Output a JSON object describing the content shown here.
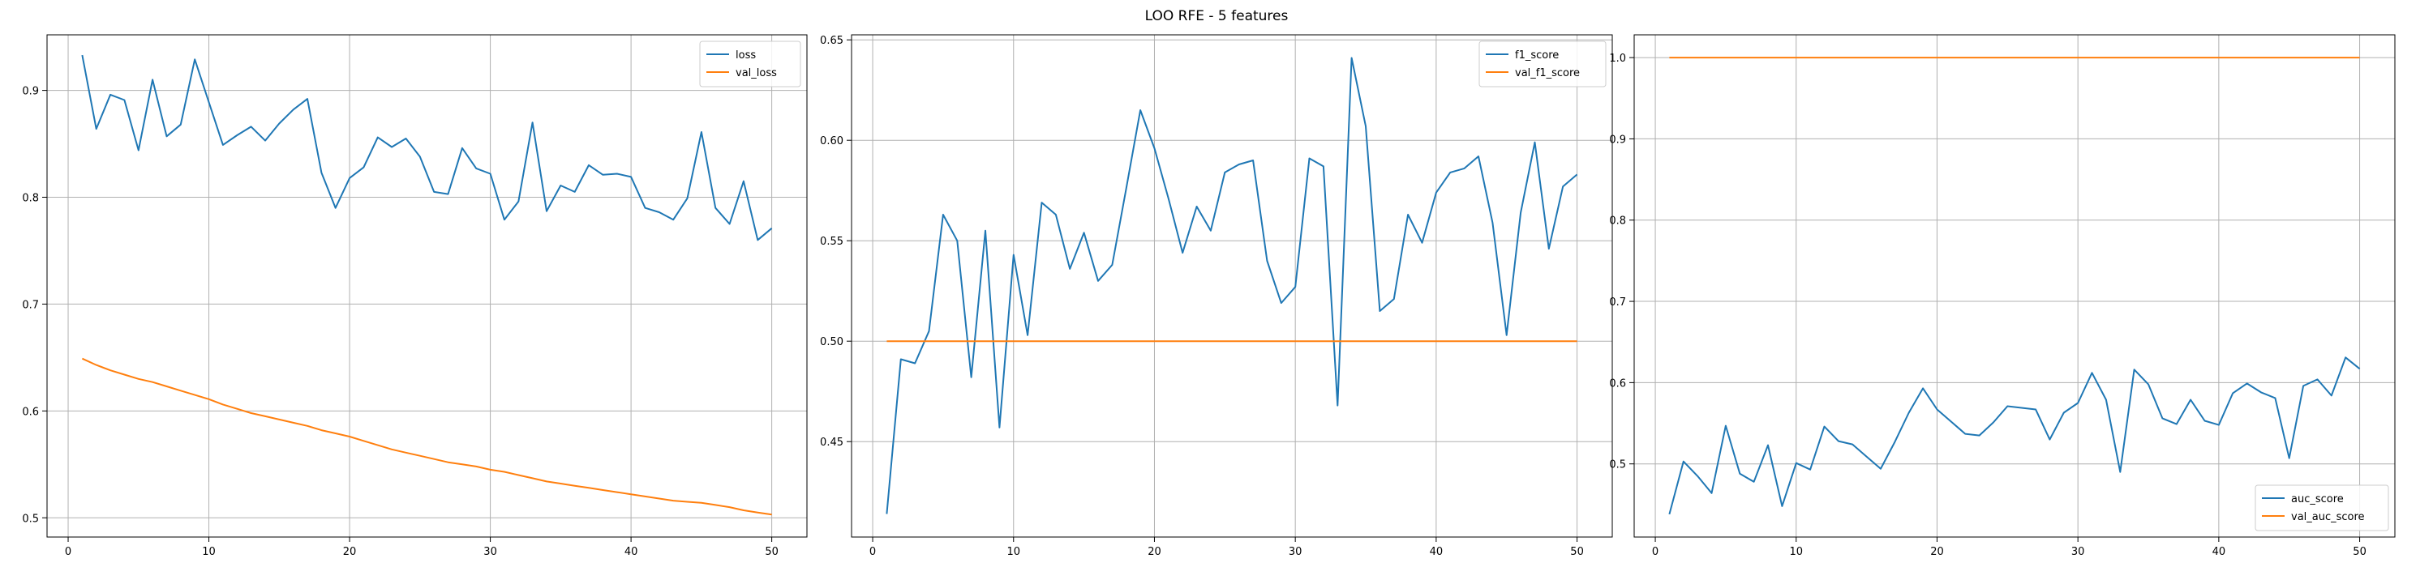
{
  "figure": {
    "title": "LOO RFE - 5 features"
  },
  "colors": {
    "blue": "#1f77b4",
    "orange": "#ff7f0e",
    "grid": "#b0b0b0"
  },
  "chart_data": [
    {
      "type": "line",
      "xlim": [
        -1.5,
        52.5
      ],
      "ylim": [
        0.482,
        0.952
      ],
      "xticks": [
        0,
        10,
        20,
        30,
        40,
        50
      ],
      "yticks": [
        0.5,
        0.6,
        0.7,
        0.8,
        0.9
      ],
      "xtick_labels": [
        "0",
        "10",
        "20",
        "30",
        "40",
        "50"
      ],
      "ytick_labels": [
        "0.5",
        "0.6",
        "0.7",
        "0.8",
        "0.9"
      ],
      "grid": true,
      "legend": "top-right",
      "x": [
        1,
        2,
        3,
        4,
        5,
        6,
        7,
        8,
        9,
        10,
        11,
        12,
        13,
        14,
        15,
        16,
        17,
        18,
        19,
        20,
        21,
        22,
        23,
        24,
        25,
        26,
        27,
        28,
        29,
        30,
        31,
        32,
        33,
        34,
        35,
        36,
        37,
        38,
        39,
        40,
        41,
        42,
        43,
        44,
        45,
        46,
        47,
        48,
        49,
        50
      ],
      "series": [
        {
          "name": "loss",
          "color": "#1f77b4",
          "values": [
            0.933,
            0.864,
            0.896,
            0.891,
            0.844,
            0.91,
            0.857,
            0.868,
            0.929,
            0.889,
            0.849,
            0.858,
            0.866,
            0.853,
            0.869,
            0.882,
            0.892,
            0.823,
            0.79,
            0.818,
            0.828,
            0.856,
            0.847,
            0.855,
            0.838,
            0.805,
            0.803,
            0.846,
            0.827,
            0.822,
            0.779,
            0.796,
            0.87,
            0.787,
            0.811,
            0.805,
            0.83,
            0.821,
            0.822,
            0.819,
            0.79,
            0.786,
            0.779,
            0.799,
            0.861,
            0.79,
            0.775,
            0.815,
            0.76,
            0.771
          ]
        },
        {
          "name": "val_loss",
          "color": "#ff7f0e",
          "values": [
            0.649,
            0.643,
            0.638,
            0.634,
            0.63,
            0.627,
            0.623,
            0.619,
            0.615,
            0.611,
            0.606,
            0.602,
            0.598,
            0.595,
            0.592,
            0.589,
            0.586,
            0.582,
            0.579,
            0.576,
            0.572,
            0.568,
            0.564,
            0.561,
            0.558,
            0.555,
            0.552,
            0.55,
            0.548,
            0.545,
            0.543,
            0.54,
            0.537,
            0.534,
            0.532,
            0.53,
            0.528,
            0.526,
            0.524,
            0.522,
            0.52,
            0.518,
            0.516,
            0.515,
            0.514,
            0.512,
            0.51,
            0.507,
            0.505,
            0.503
          ]
        }
      ]
    },
    {
      "type": "line",
      "xlim": [
        -1.5,
        52.5
      ],
      "ylim": [
        0.4025,
        0.6525
      ],
      "xticks": [
        0,
        10,
        20,
        30,
        40,
        50
      ],
      "yticks": [
        0.45,
        0.5,
        0.55,
        0.6,
        0.65
      ],
      "xtick_labels": [
        "0",
        "10",
        "20",
        "30",
        "40",
        "50"
      ],
      "ytick_labels": [
        "0.45",
        "0.50",
        "0.55",
        "0.60",
        "0.65"
      ],
      "grid": true,
      "legend": "top-right",
      "x": [
        1,
        2,
        3,
        4,
        5,
        6,
        7,
        8,
        9,
        10,
        11,
        12,
        13,
        14,
        15,
        16,
        17,
        18,
        19,
        20,
        21,
        22,
        23,
        24,
        25,
        26,
        27,
        28,
        29,
        30,
        31,
        32,
        33,
        34,
        35,
        36,
        37,
        38,
        39,
        40,
        41,
        42,
        43,
        44,
        45,
        46,
        47,
        48,
        49,
        50
      ],
      "series": [
        {
          "name": "f1_score",
          "color": "#1f77b4",
          "values": [
            0.414,
            0.491,
            0.489,
            0.505,
            0.563,
            0.55,
            0.482,
            0.555,
            0.457,
            0.543,
            0.503,
            0.569,
            0.563,
            0.536,
            0.554,
            0.53,
            0.538,
            0.576,
            0.615,
            0.596,
            0.571,
            0.544,
            0.567,
            0.555,
            0.584,
            0.588,
            0.59,
            0.54,
            0.519,
            0.527,
            0.591,
            0.587,
            0.468,
            0.641,
            0.607,
            0.515,
            0.521,
            0.563,
            0.549,
            0.574,
            0.584,
            0.586,
            0.592,
            0.559,
            0.503,
            0.564,
            0.599,
            0.546,
            0.577,
            0.583
          ]
        },
        {
          "name": "val_f1_score",
          "color": "#ff7f0e",
          "values": [
            0.5,
            0.5,
            0.5,
            0.5,
            0.5,
            0.5,
            0.5,
            0.5,
            0.5,
            0.5,
            0.5,
            0.5,
            0.5,
            0.5,
            0.5,
            0.5,
            0.5,
            0.5,
            0.5,
            0.5,
            0.5,
            0.5,
            0.5,
            0.5,
            0.5,
            0.5,
            0.5,
            0.5,
            0.5,
            0.5,
            0.5,
            0.5,
            0.5,
            0.5,
            0.5,
            0.5,
            0.5,
            0.5,
            0.5,
            0.5,
            0.5,
            0.5,
            0.5,
            0.5,
            0.5,
            0.5,
            0.5,
            0.5,
            0.5,
            0.5
          ]
        }
      ]
    },
    {
      "type": "line",
      "xlim": [
        -1.5,
        52.5
      ],
      "ylim": [
        0.41,
        1.028
      ],
      "xticks": [
        0,
        10,
        20,
        30,
        40,
        50
      ],
      "yticks": [
        0.5,
        0.6,
        0.7,
        0.8,
        0.9,
        1.0
      ],
      "xtick_labels": [
        "0",
        "10",
        "20",
        "30",
        "40",
        "50"
      ],
      "ytick_labels": [
        "0.5",
        "0.6",
        "0.7",
        "0.8",
        "0.9",
        "1.0"
      ],
      "grid": true,
      "legend": "bottom-right",
      "x": [
        1,
        2,
        3,
        4,
        5,
        6,
        7,
        8,
        9,
        10,
        11,
        12,
        13,
        14,
        15,
        16,
        17,
        18,
        19,
        20,
        21,
        22,
        23,
        24,
        25,
        26,
        27,
        28,
        29,
        30,
        31,
        32,
        33,
        34,
        35,
        36,
        37,
        38,
        39,
        40,
        41,
        42,
        43,
        44,
        45,
        46,
        47,
        48,
        49,
        50
      ],
      "series": [
        {
          "name": "auc_score",
          "color": "#1f77b4",
          "values": [
            0.438,
            0.503,
            0.485,
            0.464,
            0.547,
            0.488,
            0.478,
            0.523,
            0.448,
            0.501,
            0.493,
            0.546,
            0.528,
            0.524,
            0.509,
            0.494,
            0.527,
            0.563,
            0.593,
            0.567,
            0.552,
            0.537,
            0.535,
            0.551,
            0.571,
            0.569,
            0.567,
            0.53,
            0.563,
            0.575,
            0.612,
            0.579,
            0.49,
            0.616,
            0.598,
            0.556,
            0.549,
            0.579,
            0.553,
            0.548,
            0.587,
            0.599,
            0.588,
            0.581,
            0.507,
            0.596,
            0.604,
            0.584,
            0.631,
            0.617
          ]
        },
        {
          "name": "val_auc_score",
          "color": "#ff7f0e",
          "values": [
            1.0,
            1.0,
            1.0,
            1.0,
            1.0,
            1.0,
            1.0,
            1.0,
            1.0,
            1.0,
            1.0,
            1.0,
            1.0,
            1.0,
            1.0,
            1.0,
            1.0,
            1.0,
            1.0,
            1.0,
            1.0,
            1.0,
            1.0,
            1.0,
            1.0,
            1.0,
            1.0,
            1.0,
            1.0,
            1.0,
            1.0,
            1.0,
            1.0,
            1.0,
            1.0,
            1.0,
            1.0,
            1.0,
            1.0,
            1.0,
            1.0,
            1.0,
            1.0,
            1.0,
            1.0,
            1.0,
            1.0,
            1.0,
            1.0,
            1.0
          ]
        }
      ]
    }
  ]
}
